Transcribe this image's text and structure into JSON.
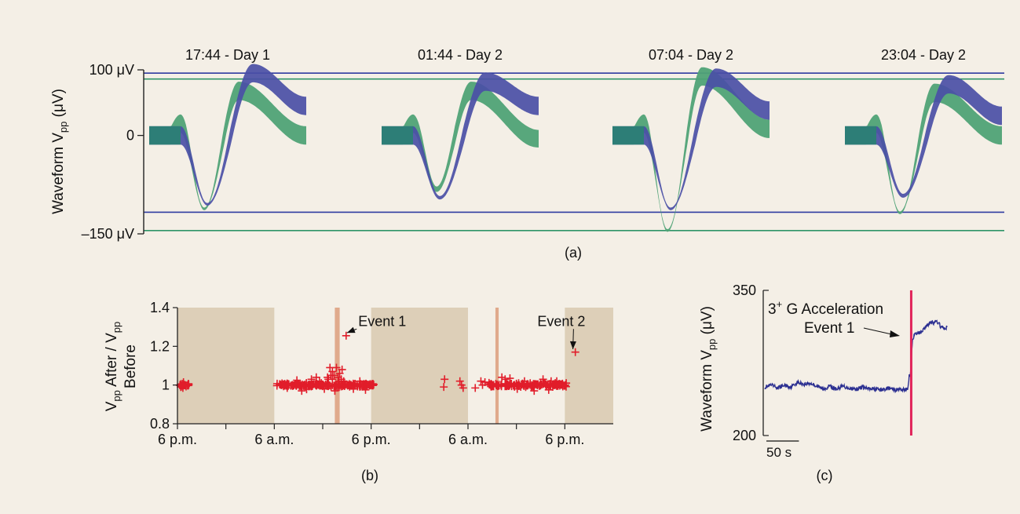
{
  "colors": {
    "background": "#f4efe6",
    "blue": "#4a4fa6",
    "green": "#4fa276",
    "overlap": "#2d7e77",
    "shade": "#ddcfb8",
    "event_bar": "#e0aa8c",
    "red": "#e11d2a",
    "trace": "#2b2f91",
    "event_line": "#e1245a",
    "blue_line": "#2f3ba0",
    "green_line": "#2f9468"
  },
  "chart_data": [
    {
      "id": "a",
      "type": "line",
      "panel_label": "(a)",
      "ylabel_main": "Waveform V",
      "ylabel_sub": "pp",
      "ylabel_tail": " (μV)",
      "ylim": [
        -150,
        100
      ],
      "yticks": [
        {
          "value": 100,
          "label": "100 μV"
        },
        {
          "value": 0,
          "label": "0"
        },
        {
          "value": -150,
          "label": "–150 μV"
        }
      ],
      "reference_lines": [
        {
          "color": "blue",
          "value": 95
        },
        {
          "color": "green",
          "value": 86
        },
        {
          "color": "blue",
          "value": -117
        },
        {
          "color": "green",
          "value": -145
        }
      ],
      "snapshots": [
        {
          "title": "17:44 - Day 1",
          "blue": {
            "min": -105,
            "max": 95,
            "endv": 45
          },
          "green": {
            "min": -112,
            "max": 68,
            "endv": 0
          }
        },
        {
          "title": "01:44 - Day 2",
          "blue": {
            "min": -95,
            "max": 82,
            "endv": 45
          },
          "green": {
            "min": -82,
            "max": 68,
            "endv": -5
          }
        },
        {
          "title": "07:04 - Day 2",
          "blue": {
            "min": -112,
            "max": 88,
            "endv": 38
          },
          "green": {
            "min": -145,
            "max": 90,
            "endv": 10
          }
        },
        {
          "title": "23:04 - Day 2",
          "blue": {
            "min": -92,
            "max": 78,
            "endv": 30
          },
          "green": {
            "min": -118,
            "max": 65,
            "endv": 0
          }
        }
      ]
    },
    {
      "id": "b",
      "type": "scatter",
      "panel_label": "(b)",
      "ylabel_line1_main": "V",
      "ylabel_line1_sub1": "pp",
      "ylabel_line1_mid": " After / V",
      "ylabel_line1_sub2": "pp",
      "ylabel_line2": "Before",
      "ylim": [
        0.8,
        1.4
      ],
      "yticks": [
        0.8,
        1,
        1.2,
        1.4
      ],
      "xlim": [
        0,
        54
      ],
      "xticks": [
        {
          "value": 0,
          "label": "6 p.m."
        },
        {
          "value": 6,
          "label": ""
        },
        {
          "value": 12,
          "label": "6 a.m."
        },
        {
          "value": 18,
          "label": ""
        },
        {
          "value": 24,
          "label": "6 p.m."
        },
        {
          "value": 30,
          "label": ""
        },
        {
          "value": 36,
          "label": "6 a.m."
        },
        {
          "value": 42,
          "label": ""
        },
        {
          "value": 48,
          "label": "6 p.m."
        }
      ],
      "shaded_ranges": [
        [
          0,
          12
        ],
        [
          24,
          36
        ],
        [
          48,
          54
        ]
      ],
      "event_bars": [
        {
          "x": 19.8,
          "width": 0.6
        },
        {
          "x": 39.6,
          "width": 0.4
        }
      ],
      "clusters": [
        {
          "x0": 0.3,
          "x1": 1.4,
          "count": 26,
          "spread": 0.022
        },
        {
          "x0": 12.3,
          "x1": 24.4,
          "count": 190,
          "spread": 0.013
        },
        {
          "x0": 38.4,
          "x1": 48.3,
          "count": 150,
          "spread": 0.013
        }
      ],
      "points": [
        {
          "x": 19.2,
          "y": 1.07
        },
        {
          "x": 19.4,
          "y": 1.05
        },
        {
          "x": 19.7,
          "y": 1.09
        },
        {
          "x": 20.1,
          "y": 1.06
        },
        {
          "x": 20.4,
          "y": 1.08
        },
        {
          "x": 19.9,
          "y": 1.04
        },
        {
          "x": 20.3,
          "y": 1.03
        },
        {
          "x": 19.0,
          "y": 1.05
        },
        {
          "x": 18.7,
          "y": 1.03
        },
        {
          "x": 20.6,
          "y": 1.02
        },
        {
          "x": 19.2,
          "y": 1.03
        },
        {
          "x": 18.9,
          "y": 1.09
        },
        {
          "x": 18.6,
          "y": 1.04
        },
        {
          "x": 20.0,
          "y": 1.02
        },
        {
          "x": 17.2,
          "y": 1.04
        },
        {
          "x": 17.6,
          "y": 1.02
        },
        {
          "x": 16.6,
          "y": 1.03
        },
        {
          "x": 18.2,
          "y": 0.98
        },
        {
          "x": 19.5,
          "y": 0.97
        },
        {
          "x": 21.8,
          "y": 0.98
        },
        {
          "x": 23.3,
          "y": 0.975
        },
        {
          "x": 15.4,
          "y": 0.97
        },
        {
          "x": 13.6,
          "y": 0.985
        },
        {
          "x": 14.8,
          "y": 1.025
        },
        {
          "x": 22.6,
          "y": 1.02
        },
        {
          "x": 16.0,
          "y": 0.978
        },
        {
          "x": 40.2,
          "y": 1.04
        },
        {
          "x": 40.6,
          "y": 1.03
        },
        {
          "x": 41.2,
          "y": 1.035
        },
        {
          "x": 43.0,
          "y": 1.02
        },
        {
          "x": 45.3,
          "y": 1.03
        },
        {
          "x": 46.3,
          "y": 1.02
        },
        {
          "x": 44.2,
          "y": 0.97
        },
        {
          "x": 46.0,
          "y": 0.975
        },
        {
          "x": 47.0,
          "y": 1.02
        },
        {
          "x": 42.1,
          "y": 0.98
        },
        {
          "x": 33.1,
          "y": 1.03
        },
        {
          "x": 33.0,
          "y": 0.99
        },
        {
          "x": 35.2,
          "y": 1.0
        },
        {
          "x": 35.0,
          "y": 1.02
        },
        {
          "x": 35.4,
          "y": 0.985
        },
        {
          "x": 36.9,
          "y": 0.985
        },
        {
          "x": 37.6,
          "y": 1.02
        },
        {
          "x": 37.8,
          "y": 1.0
        },
        {
          "x": 38.1,
          "y": 1.015
        },
        {
          "x": 20.9,
          "y": 1.255
        },
        {
          "x": 49.3,
          "y": 1.17
        }
      ],
      "annotations": [
        {
          "text": "Event 1",
          "x": 22.4,
          "y": 1.33,
          "tx": 21.0,
          "ty": 1.27
        },
        {
          "text": "Event 2",
          "x": 44.6,
          "y": 1.33,
          "tx": 49.0,
          "ty": 1.185
        }
      ]
    },
    {
      "id": "c",
      "type": "line",
      "panel_label": "(c)",
      "ylabel_main": "Waveform V",
      "ylabel_sub": "pp",
      "ylabel_tail": " (μV)",
      "ylim": [
        200,
        350
      ],
      "yticks": [
        {
          "value": 350,
          "label": "350"
        },
        {
          "value": 200,
          "label": "200"
        }
      ],
      "scalebar": {
        "label": "50 s",
        "seconds": 50
      },
      "event_line_t": 225,
      "event_label_line1_pre": "3",
      "event_label_sup": "+",
      "event_label_line1_post": " G Acceleration",
      "event_label_line2": "Event 1",
      "series": [
        {
          "name": "",
          "t_start": 0,
          "t_end": 280,
          "points": [
            [
              0,
              250
            ],
            [
              10,
              252
            ],
            [
              20,
              249
            ],
            [
              30,
              252
            ],
            [
              40,
              250
            ],
            [
              50,
              255
            ],
            [
              60,
              253
            ],
            [
              70,
              254
            ],
            [
              80,
              251
            ],
            [
              90,
              248
            ],
            [
              100,
              251
            ],
            [
              110,
              248
            ],
            [
              120,
              251
            ],
            [
              130,
              249
            ],
            [
              140,
              248
            ],
            [
              150,
              250
            ],
            [
              160,
              248
            ],
            [
              170,
              248
            ],
            [
              180,
              247
            ],
            [
              190,
              249
            ],
            [
              200,
              247
            ],
            [
              210,
              248
            ],
            [
              217,
              247
            ],
            [
              220,
              249
            ],
            [
              222,
              262
            ],
            [
              224,
              264
            ],
            [
              227,
              300
            ],
            [
              230,
              304
            ],
            [
              240,
              307
            ],
            [
              250,
              314
            ],
            [
              255,
              318
            ],
            [
              260,
              316
            ],
            [
              265,
              318
            ],
            [
              270,
              313
            ],
            [
              275,
              310
            ],
            [
              280,
              312
            ]
          ]
        }
      ]
    }
  ]
}
